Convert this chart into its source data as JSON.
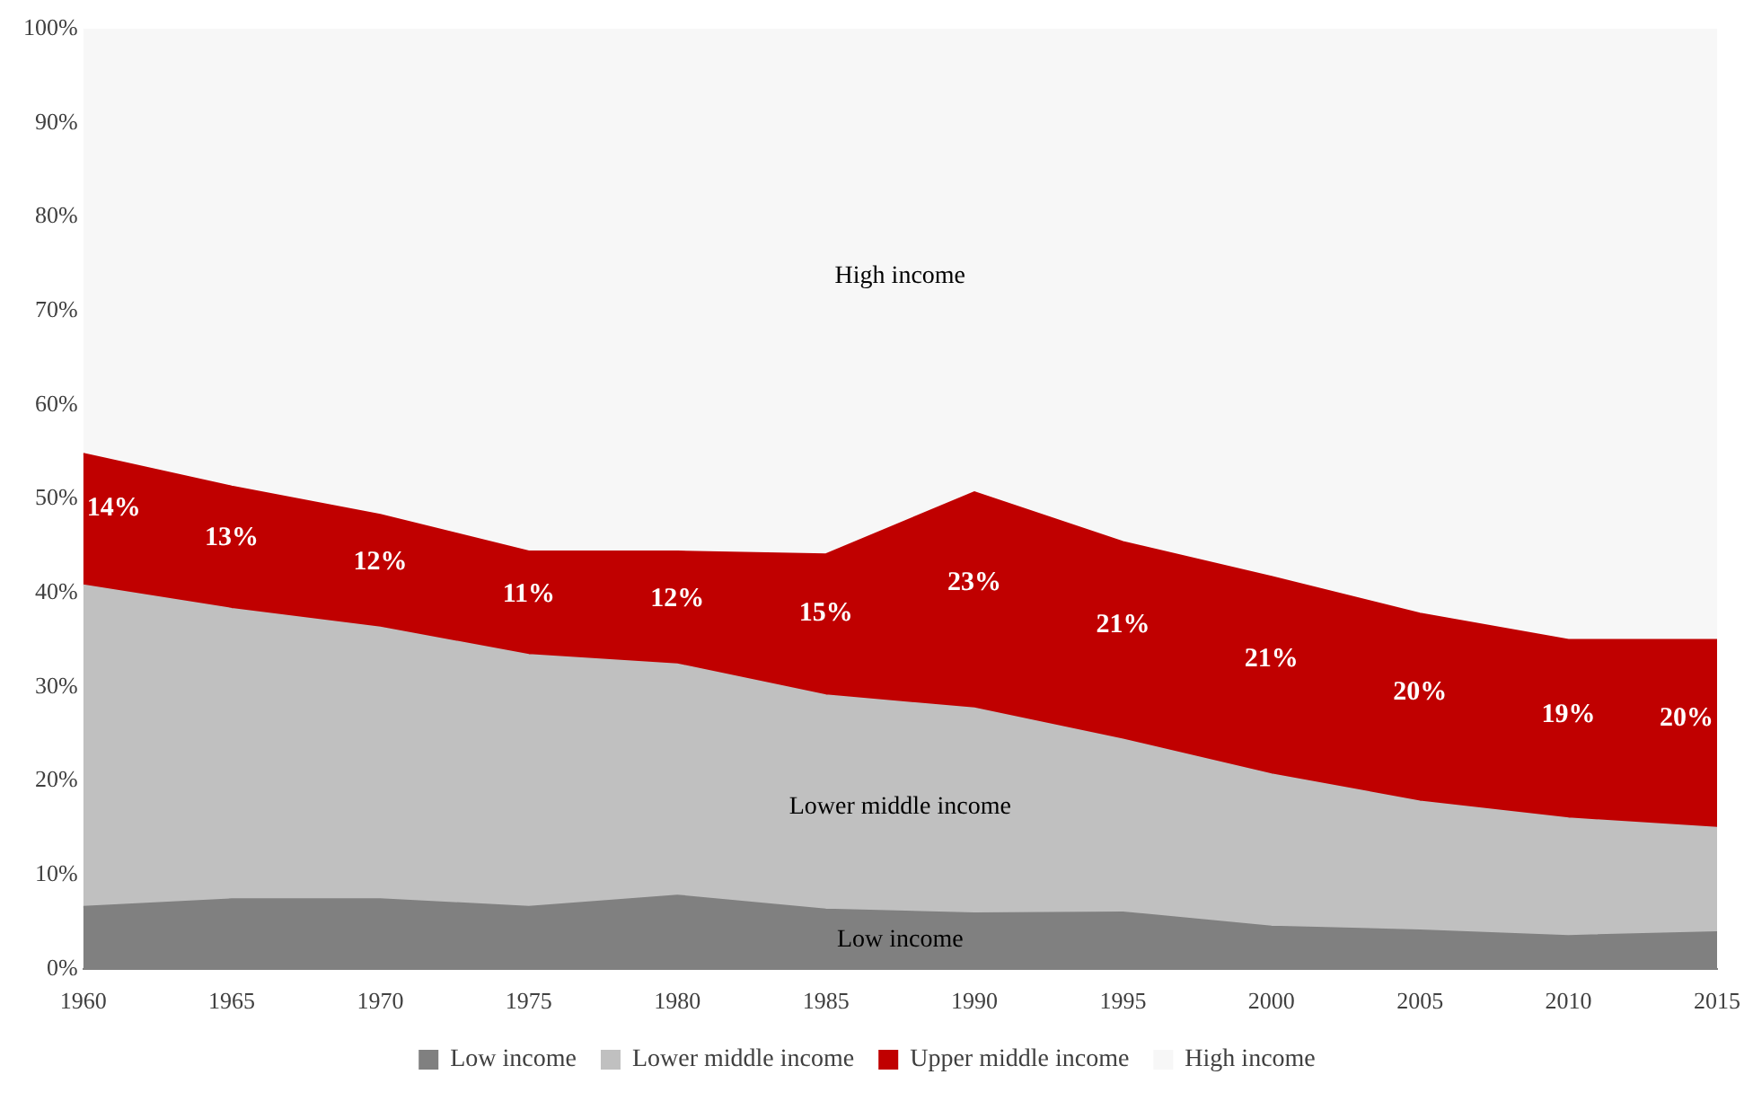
{
  "chart_data": {
    "type": "area",
    "stacked": true,
    "x": [
      1960,
      1965,
      1970,
      1975,
      1980,
      1985,
      1990,
      1995,
      2000,
      2005,
      2010,
      2015
    ],
    "xlim": [
      1960,
      2015
    ],
    "xticks": [
      1960,
      1965,
      1970,
      1975,
      1980,
      1985,
      1990,
      1995,
      2000,
      2005,
      2010,
      2015
    ],
    "ylim": [
      0,
      100
    ],
    "yticks": [
      {
        "value": 0,
        "label": "0%"
      },
      {
        "value": 10,
        "label": "10%"
      },
      {
        "value": 20,
        "label": "20%"
      },
      {
        "value": 30,
        "label": "30%"
      },
      {
        "value": 40,
        "label": "40%"
      },
      {
        "value": 50,
        "label": "50%"
      },
      {
        "value": 60,
        "label": "60%"
      },
      {
        "value": 70,
        "label": "70%"
      },
      {
        "value": 80,
        "label": "80%"
      },
      {
        "value": 90,
        "label": "90%"
      },
      {
        "value": 100,
        "label": "100%"
      }
    ],
    "legend": "bottom",
    "series": [
      {
        "name": "Low income",
        "color": "#808080",
        "values": [
          6.6,
          7.4,
          7.4,
          6.6,
          7.8,
          6.3,
          5.9,
          6.0,
          4.5,
          4.1,
          3.5,
          3.9
        ]
      },
      {
        "name": "Lower middle income",
        "color": "#c0c0c0",
        "values": [
          34.2,
          30.9,
          28.9,
          26.8,
          24.6,
          22.8,
          21.8,
          18.4,
          16.2,
          13.7,
          12.5,
          11.1
        ]
      },
      {
        "name": "Upper middle income",
        "color": "#c00000",
        "values": [
          14,
          13,
          12,
          11,
          12,
          15,
          23,
          21,
          21,
          20,
          19,
          20
        ],
        "value_labels": [
          "14%",
          "13%",
          "12%",
          "11%",
          "12%",
          "15%",
          "23%",
          "21%",
          "21%",
          "20%",
          "19%",
          "20%"
        ]
      },
      {
        "name": "High income",
        "color": "#f7f7f7",
        "values": [
          45.2,
          48.7,
          51.7,
          55.6,
          55.6,
          55.9,
          49.3,
          54.6,
          58.3,
          62.2,
          65,
          65
        ]
      }
    ]
  }
}
